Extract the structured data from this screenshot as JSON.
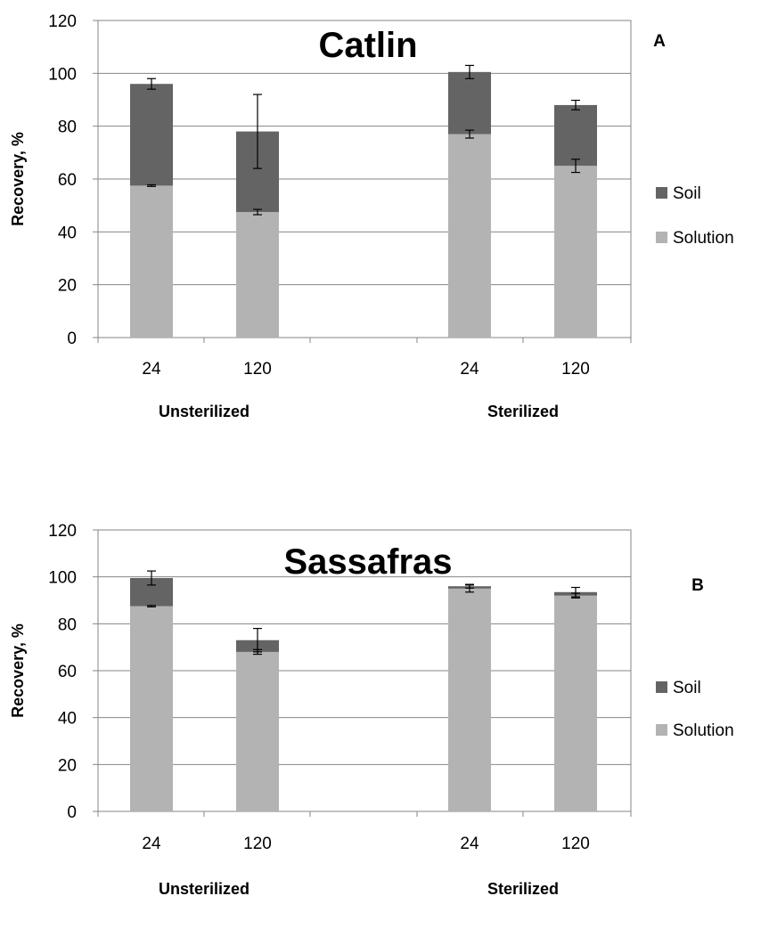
{
  "colors": {
    "soil": "#646464",
    "solution": "#b3b3b3",
    "grid": "#868686",
    "axis": "#868686"
  },
  "chart_data": [
    {
      "type": "bar",
      "stacked": true,
      "title": "Catlin",
      "panel_label": "A",
      "ylabel": "Recovery, %",
      "ylim": [
        0,
        120
      ],
      "yticks": [
        "0",
        "20",
        "40",
        "60",
        "80",
        "100",
        "120"
      ],
      "grid": true,
      "legend_position": "right",
      "legend": [
        "Soil",
        "Solution"
      ],
      "categories": [
        "24",
        "120",
        "24",
        "120"
      ],
      "groups": [
        "Unsterilized",
        "Sterilized"
      ],
      "series": [
        {
          "name": "Solution",
          "values": [
            57.5,
            47.5,
            77,
            65
          ],
          "errors": [
            0.3,
            1,
            1.5,
            2.5
          ]
        },
        {
          "name": "Soil",
          "values": [
            38.5,
            30.5,
            23.5,
            23
          ],
          "errors": [
            2,
            14,
            2.5,
            1.8
          ]
        }
      ]
    },
    {
      "type": "bar",
      "stacked": true,
      "title": "Sassafras",
      "panel_label": "B",
      "ylabel": "Recovery, %",
      "ylim": [
        0,
        120
      ],
      "yticks": [
        "0",
        "20",
        "40",
        "60",
        "80",
        "100",
        "120"
      ],
      "grid": true,
      "legend_position": "right",
      "legend": [
        "Soil",
        "Solution"
      ],
      "categories": [
        "24",
        "120",
        "24",
        "120"
      ],
      "groups": [
        "Unsterilized",
        "Sterilized"
      ],
      "series": [
        {
          "name": "Solution",
          "values": [
            87.5,
            68,
            95,
            92
          ],
          "errors": [
            0.3,
            1,
            1.5,
            1
          ]
        },
        {
          "name": "Soil",
          "values": [
            12,
            5,
            1,
            1.5
          ],
          "errors": [
            3,
            5,
            0.8,
            2
          ]
        }
      ]
    }
  ]
}
